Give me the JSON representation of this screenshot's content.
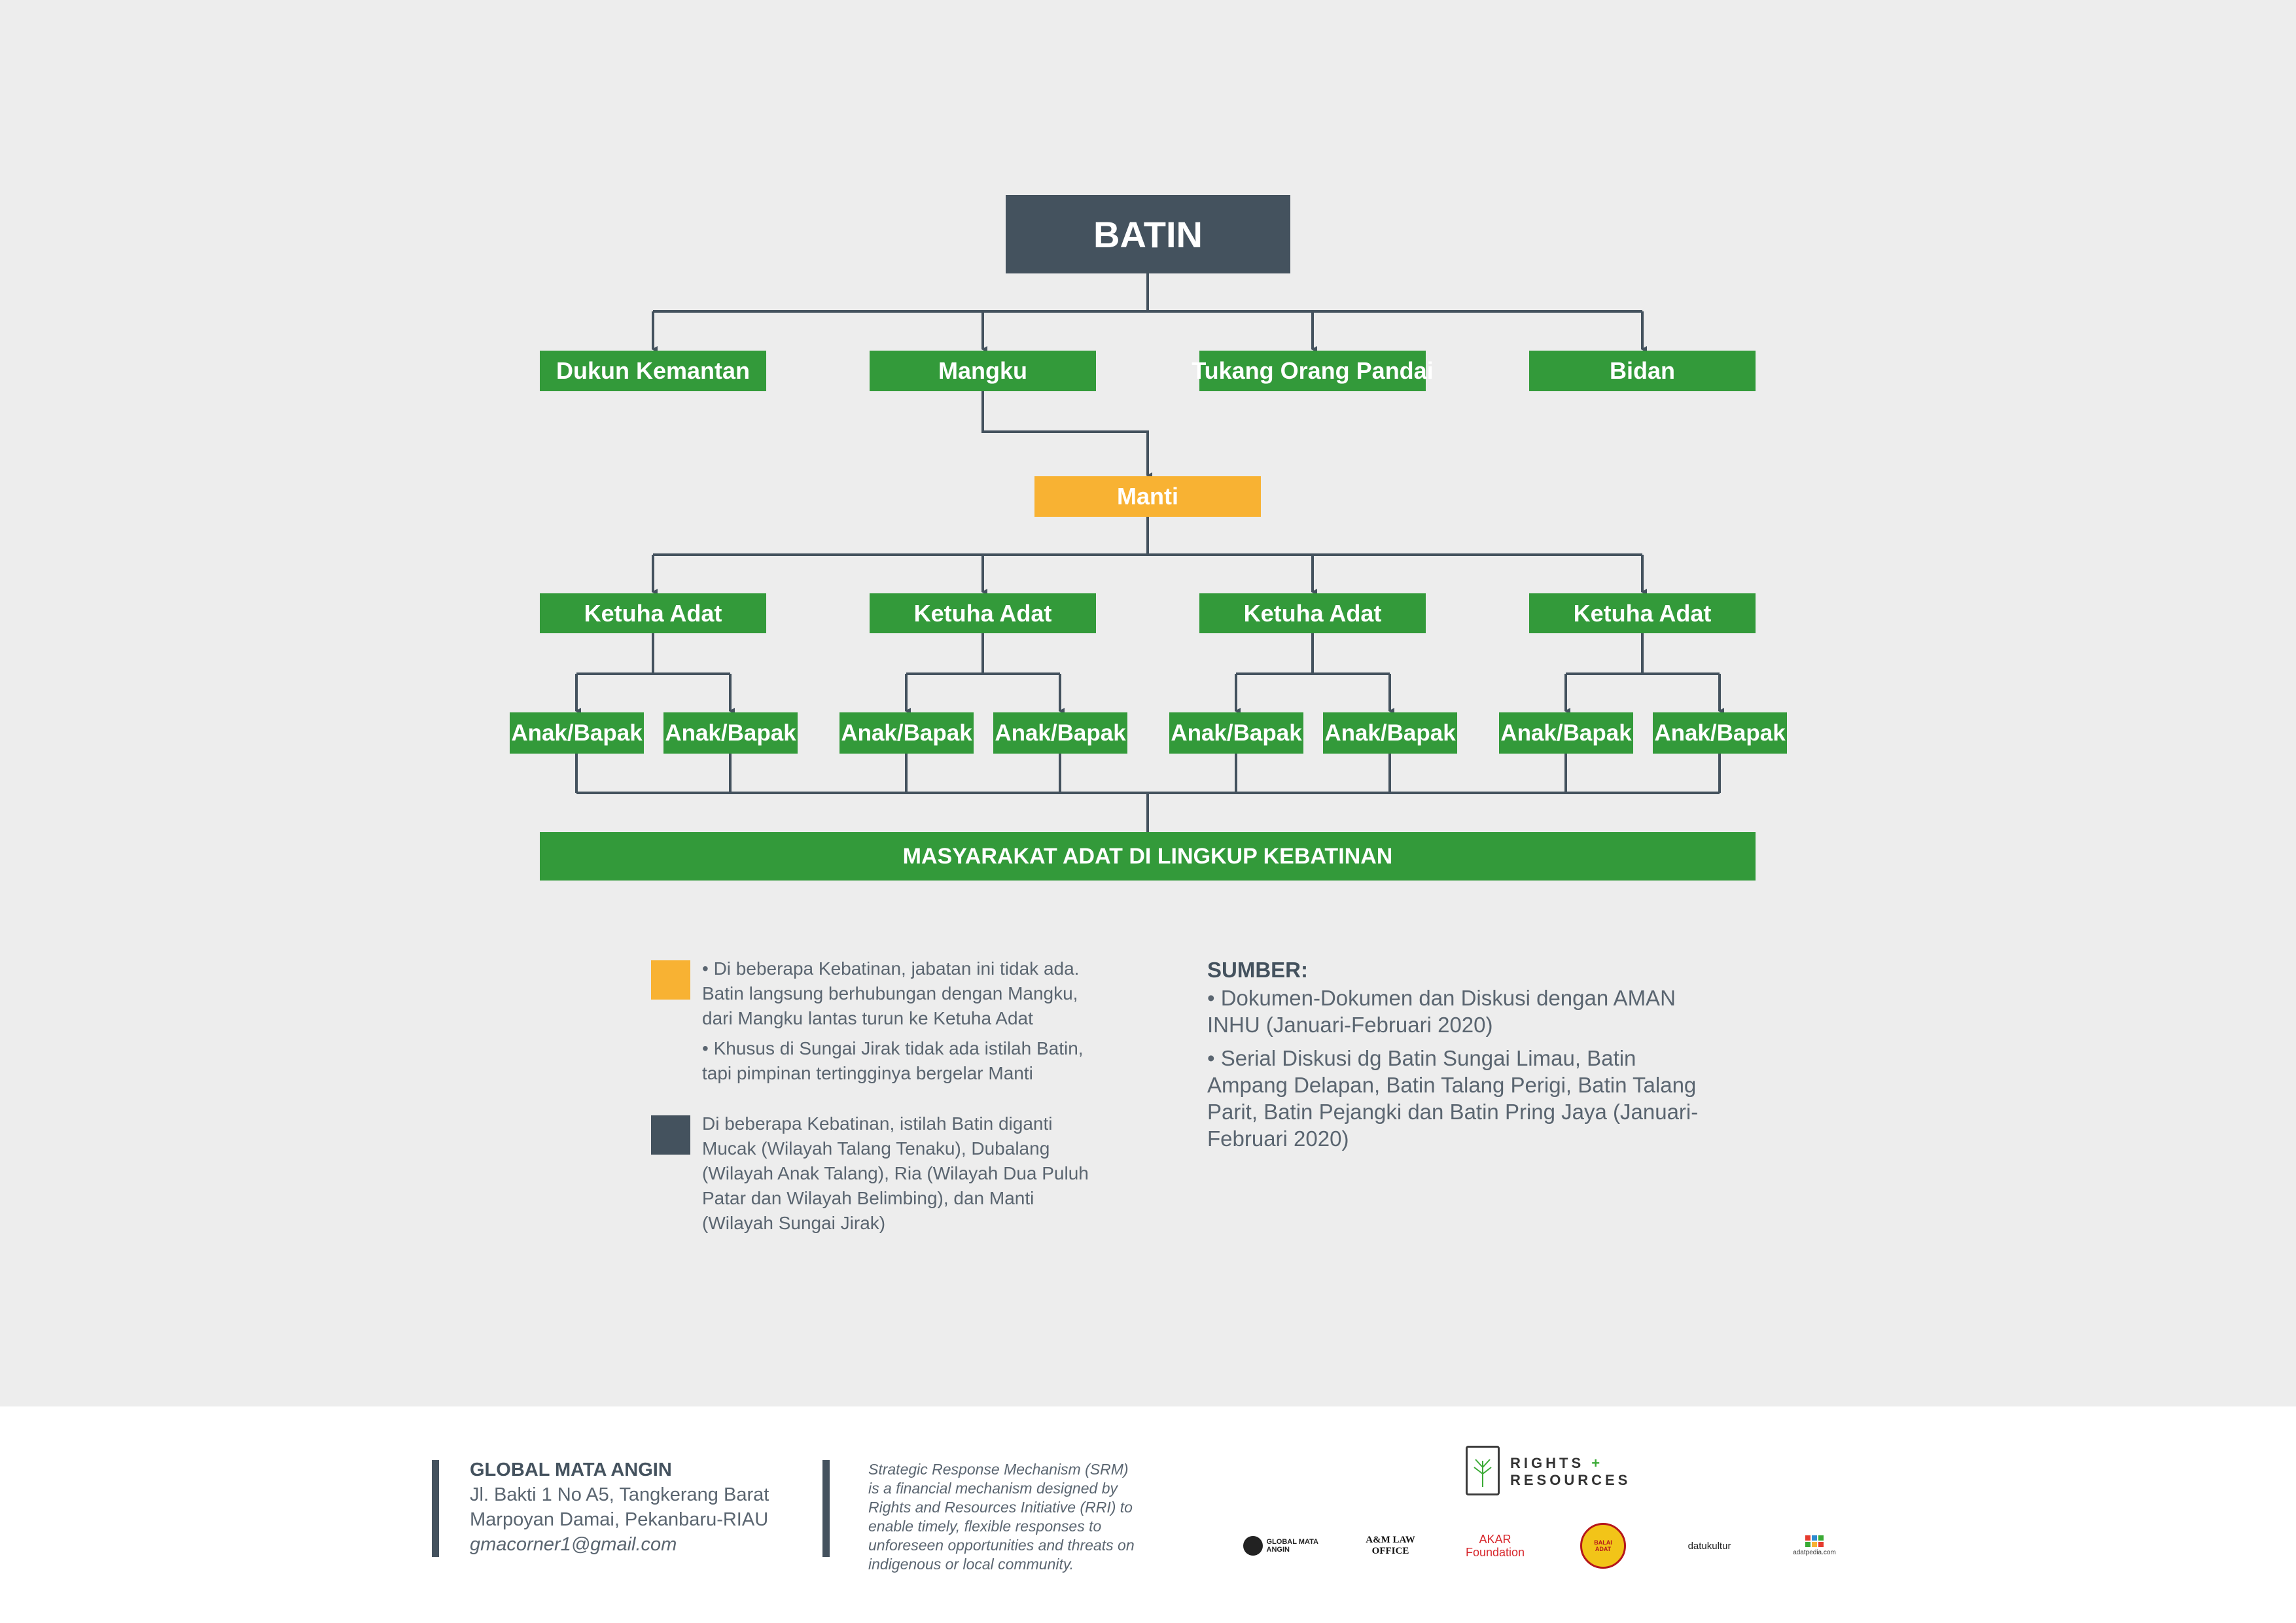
{
  "colors": {
    "background": "#ededed",
    "dark_slate": "#44525e",
    "green": "#339a3a",
    "orange": "#f8b233",
    "line": "#44525e",
    "footer_bg": "#ffffff"
  },
  "diagram": {
    "top": "BATIN",
    "roles": [
      "Dukun Kemantan",
      "Mangku",
      "Tukang Orang Pandai",
      "Bidan"
    ],
    "middle": "Manti",
    "elders": [
      "Ketuha Adat",
      "Ketuha Adat",
      "Ketuha Adat",
      "Ketuha Adat"
    ],
    "children": [
      "Anak/Bapak",
      "Anak/Bapak",
      "Anak/Bapak",
      "Anak/Bapak",
      "Anak/Bapak",
      "Anak/Bapak",
      "Anak/Bapak",
      "Anak/Bapak"
    ],
    "bottom": "MASYARAKAT ADAT DI LINGKUP KEBATINAN"
  },
  "legend": {
    "orange_notes": [
      "• Di beberapa Kebatinan, jabatan ini tidak ada.  Batin langsung berhubungan dengan Mangku, dari Mangku lantas turun ke Ketuha Adat",
      "• Khusus di Sungai Jirak tidak ada istilah Batin, tapi pimpinan tertingginya bergelar Manti"
    ],
    "dark_note": "Di beberapa Kebatinan, istilah Batin diganti Mucak (Wilayah Talang Tenaku),  Dubalang (Wilayah Anak Talang), Ria (Wilayah Dua Puluh Patar dan Wilayah Belimbing), dan Manti (Wilayah Sungai Jirak)"
  },
  "sources": {
    "title": "SUMBER:",
    "items": [
      "• Dokumen-Dokumen dan Diskusi dengan AMAN INHU (Januari-Februari 2020)",
      "• Serial Diskusi dg Batin Sungai Limau, Batin Ampang Delapan, Batin Talang Perigi, Batin Talang Parit, Batin Pejangki dan Batin Pring Jaya (Januari-Februari 2020)"
    ]
  },
  "footer": {
    "org_name": "GLOBAL MATA ANGIN",
    "address_1": "Jl. Bakti 1 No A5, Tangkerang Barat",
    "address_2": "Marpoyan Damai, Pekanbaru-RIAU",
    "email": "gmacorner1@gmail.com",
    "srm_text": "Strategic Response Mechanism (SRM) is a financial mechanism designed by Rights and Resources Initiative (RRI) to enable timely, flexible responses to unforeseen opportunities and threats on indigenous or local community.",
    "rr_logo_line1": "RIGHTS",
    "rr_logo_plus": "+",
    "rr_logo_line2": "RESOURCES",
    "partners": [
      "GLOBAL MATA ANGIN",
      "A&M LAW OFFICE",
      "AKAR Foundation",
      "BALAI ADAT",
      "datukultur",
      "adatpedia.com"
    ]
  }
}
